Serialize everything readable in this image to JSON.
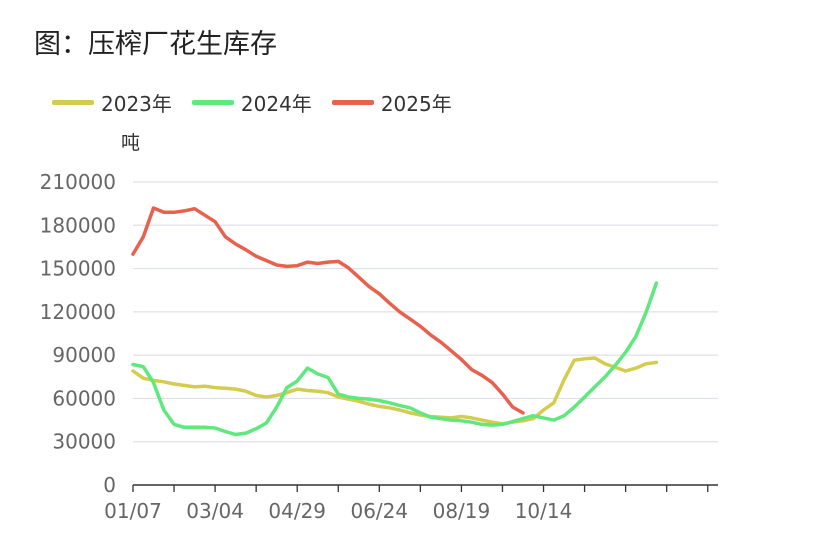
{
  "chart_data": {
    "type": "line",
    "title": "图：压榨厂花生库存",
    "ylabel": "吨",
    "xlabel": "",
    "legend_position": "top-left",
    "grid": true,
    "ylim": [
      0,
      210000
    ],
    "yticks": [
      0,
      30000,
      60000,
      90000,
      120000,
      150000,
      180000,
      210000
    ],
    "yticks_labels": [
      "0",
      "30000",
      "60000",
      "90000",
      "120000",
      "150000",
      "180000",
      "210000"
    ],
    "xlim": [
      0,
      57
    ],
    "xticks": [
      0,
      8,
      16,
      24,
      32,
      40
    ],
    "xticks_labels": [
      "01/07",
      "03/04",
      "04/29",
      "06/24",
      "08/19",
      "10/14"
    ],
    "series": [
      {
        "name": "2023年",
        "color": "#d4cc4f",
        "x": [
          0,
          1,
          2,
          3,
          4,
          5,
          6,
          7,
          8,
          9,
          10,
          11,
          12,
          13,
          14,
          15,
          16,
          17,
          18,
          19,
          20,
          21,
          22,
          23,
          24,
          25,
          26,
          27,
          28,
          29,
          30,
          31,
          32,
          33,
          34,
          35,
          36,
          37,
          38,
          39,
          40,
          41,
          42,
          43,
          44,
          45,
          46,
          47,
          48,
          49,
          50,
          51
        ],
        "values": [
          79000,
          74000,
          72500,
          71500,
          70000,
          69000,
          68000,
          68500,
          67500,
          67000,
          66500,
          65000,
          62000,
          61000,
          62000,
          64000,
          66500,
          65500,
          65000,
          64000,
          61000,
          59500,
          58000,
          56000,
          54500,
          53500,
          52000,
          50000,
          48500,
          47500,
          47000,
          46500,
          47500,
          46500,
          45000,
          43500,
          42500,
          43500,
          44500,
          46000,
          52000,
          57000,
          73000,
          86500,
          87500,
          88000,
          84000,
          81500,
          79000,
          81000,
          84000,
          85000
        ]
      },
      {
        "name": "2024年",
        "color": "#5ee87d",
        "x": [
          0,
          1,
          2,
          3,
          4,
          5,
          6,
          7,
          8,
          9,
          10,
          11,
          12,
          13,
          14,
          15,
          16,
          17,
          18,
          19,
          20,
          21,
          22,
          23,
          24,
          25,
          26,
          27,
          28,
          29,
          30,
          31,
          32,
          33,
          34,
          35,
          36,
          37,
          38,
          39,
          40,
          41,
          42,
          43,
          44,
          45,
          46,
          47,
          48,
          49,
          50,
          51
        ],
        "values": [
          83500,
          82000,
          71000,
          52000,
          42000,
          40000,
          40000,
          40000,
          39500,
          37000,
          35000,
          36000,
          39000,
          43000,
          54000,
          67500,
          72000,
          81000,
          77000,
          74500,
          63000,
          61000,
          60000,
          59500,
          58500,
          57000,
          55000,
          53500,
          50000,
          47000,
          46000,
          45000,
          44500,
          43500,
          42000,
          41500,
          42000,
          44000,
          46000,
          48000,
          46500,
          45000,
          48000,
          54000,
          61000,
          68000,
          75000,
          83000,
          92000,
          103000,
          120000,
          140000
        ]
      },
      {
        "name": "2025年",
        "color": "#e8614f",
        "x": [
          0,
          1,
          2,
          3,
          4,
          5,
          6,
          7,
          8,
          9,
          10,
          11,
          12,
          13,
          14,
          15,
          16,
          17,
          18,
          19,
          20,
          21,
          22,
          23,
          24,
          25,
          26,
          27,
          28,
          29,
          30,
          31,
          32,
          33,
          34,
          35,
          36,
          37,
          38
        ],
        "values": [
          160000,
          172000,
          192000,
          189000,
          189000,
          190000,
          191500,
          187000,
          182500,
          172000,
          167000,
          163000,
          158500,
          155500,
          152500,
          151500,
          152000,
          154500,
          153500,
          154500,
          155000,
          150500,
          144000,
          137500,
          132500,
          126000,
          120000,
          115000,
          110000,
          104000,
          99000,
          93000,
          87000,
          80000,
          76000,
          71000,
          63000,
          54000,
          50000
        ]
      }
    ]
  }
}
